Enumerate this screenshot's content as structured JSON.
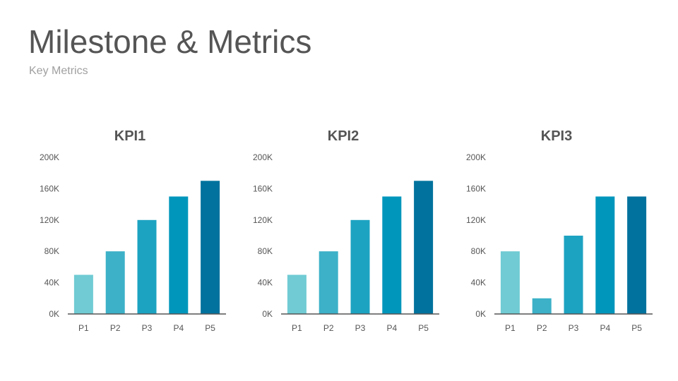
{
  "header": {
    "title": "Milestone & Metrics",
    "subtitle": "Key Metrics"
  },
  "colors": [
    "#70cbd4",
    "#3cb1c8",
    "#1da3c2",
    "#0096bc",
    "#00729d"
  ],
  "chart_data": [
    {
      "type": "bar",
      "title": "KPI1",
      "categories": [
        "P1",
        "P2",
        "P3",
        "P4",
        "P5"
      ],
      "values": [
        50000,
        80000,
        120000,
        150000,
        170000
      ],
      "ylim": [
        0,
        200000
      ],
      "yticks": [
        "0K",
        "40K",
        "80K",
        "120K",
        "160K",
        "200K"
      ],
      "grid": false
    },
    {
      "type": "bar",
      "title": "KPI2",
      "categories": [
        "P1",
        "P2",
        "P3",
        "P4",
        "P5"
      ],
      "values": [
        50000,
        80000,
        120000,
        150000,
        170000
      ],
      "ylim": [
        0,
        200000
      ],
      "yticks": [
        "0K",
        "40K",
        "80K",
        "120K",
        "160K",
        "200K"
      ],
      "grid": false
    },
    {
      "type": "bar",
      "title": "KPI3",
      "categories": [
        "P1",
        "P2",
        "P3",
        "P4",
        "P5"
      ],
      "values": [
        80000,
        20000,
        100000,
        150000,
        150000
      ],
      "ylim": [
        0,
        200000
      ],
      "yticks": [
        "0K",
        "40K",
        "80K",
        "120K",
        "160K",
        "200K"
      ],
      "grid": false
    }
  ]
}
